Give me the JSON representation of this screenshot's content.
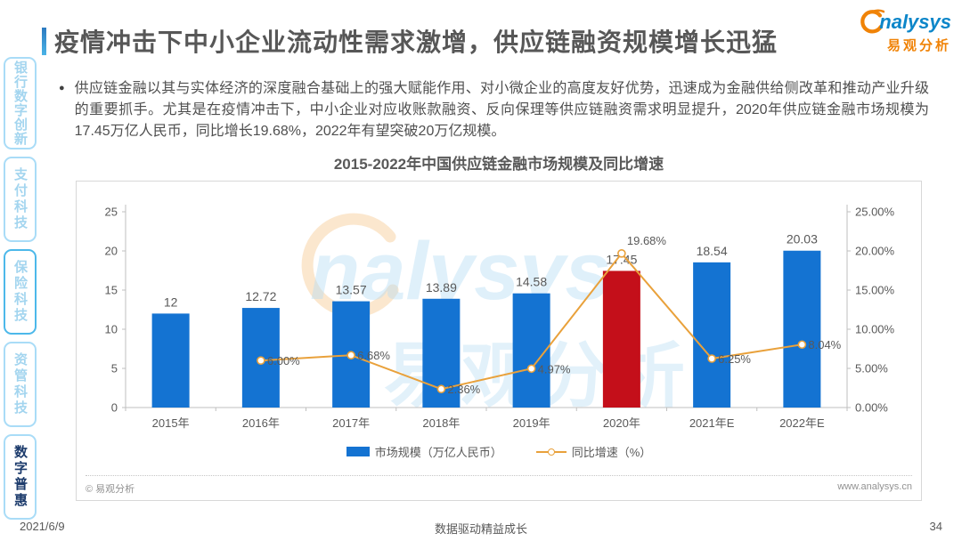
{
  "page": {
    "title": "疫情冲击下中小企业流动性需求激增，供应链融资规模增长迅猛",
    "footer": {
      "date": "2021/6/9",
      "slogan": "数据驱动精益成长",
      "page_number": "34"
    }
  },
  "logo": {
    "brand_latin": "nalysys",
    "brand_cn": "易观分析"
  },
  "sidebar": {
    "items": [
      "银行数字创新",
      "支付科技",
      "保险科技",
      "资管科技",
      "数字普惠"
    ],
    "active_index": 4
  },
  "bullet": {
    "marker": "●",
    "text": "供应链金融以其与实体经济的深度融合基础上的强大赋能作用、对小微企业的高度友好优势，迅速成为金融供给侧改革和推动产业升级的重要抓手。尤其是在疫情冲击下，中小企业对应收账款融资、反向保理等供应链融资需求明显提升，2020年供应链金融市场规模为17.45万亿人民币，同比增长19.68%，2022年有望突破20万亿规模。"
  },
  "chart_data": {
    "type": "bar",
    "title": "2015-2022年中国供应链金融市场规模及同比增速",
    "categories": [
      "2015年",
      "2016年",
      "2017年",
      "2018年",
      "2019年",
      "2020年",
      "2021年E",
      "2022年E"
    ],
    "series": [
      {
        "name": "市场规模（万亿人民币）",
        "type": "bar",
        "values": [
          12,
          12.72,
          13.57,
          13.89,
          14.58,
          17.45,
          18.54,
          20.03
        ],
        "labels": [
          "12",
          "12.72",
          "13.57",
          "13.89",
          "14.58",
          "17.45",
          "18.54",
          "20.03"
        ],
        "color": "#1473d2",
        "highlight": {
          "index": 5,
          "color": "#c40f1a"
        }
      },
      {
        "name": "同比增速（%）",
        "type": "line",
        "values": [
          null,
          6.0,
          6.68,
          2.36,
          4.97,
          19.68,
          6.25,
          8.04
        ],
        "labels": [
          null,
          "6.00%",
          "6.68%",
          "2.36%",
          "4.97%",
          "19.68%",
          "6.25%",
          "8.04%"
        ],
        "color": "#e9a13b"
      }
    ],
    "left_axis": {
      "min": 0,
      "max": 25,
      "ticks": [
        "0",
        "5",
        "10",
        "15",
        "20",
        "25"
      ]
    },
    "right_axis": {
      "min": 0,
      "max": 25,
      "ticks": [
        "0.00%",
        "5.00%",
        "10.00%",
        "15.00%",
        "20.00%",
        "25.00%"
      ]
    },
    "legend_position": "bottom",
    "grid": false
  },
  "chart_card": {
    "copyright": "© 易观分析",
    "website": "www.analysys.cn"
  },
  "watermark": {
    "latin": "nalysys",
    "cn": "易观分析"
  }
}
